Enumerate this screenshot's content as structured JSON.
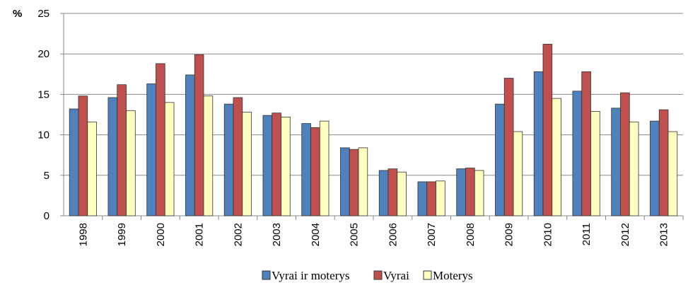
{
  "chart_data": {
    "type": "bar",
    "y_label": "%",
    "categories": [
      "1998",
      "1999",
      "2000",
      "2001",
      "2002",
      "2003",
      "2004",
      "2005",
      "2006",
      "2007",
      "2008",
      "2009",
      "2010",
      "2011",
      "2012",
      "2013"
    ],
    "series": [
      {
        "name": "Vyrai ir moterys",
        "color": "#4f81bd",
        "values": [
          13.2,
          14.6,
          16.3,
          17.4,
          13.8,
          12.4,
          11.4,
          8.4,
          5.6,
          4.2,
          5.8,
          13.8,
          17.8,
          15.4,
          13.3,
          11.7
        ]
      },
      {
        "name": "Vyrai",
        "color": "#c0504d",
        "values": [
          14.8,
          16.2,
          18.8,
          19.9,
          14.6,
          12.7,
          10.9,
          8.2,
          5.8,
          4.2,
          5.9,
          17.0,
          21.2,
          17.8,
          15.2,
          13.1
        ]
      },
      {
        "name": "Moterys",
        "color": "#ffffc0",
        "values": [
          11.6,
          13.0,
          14.0,
          14.8,
          12.8,
          12.2,
          11.7,
          8.4,
          5.4,
          4.3,
          5.6,
          10.4,
          14.5,
          12.9,
          11.6,
          10.4
        ]
      }
    ],
    "ylim": [
      0,
      25
    ],
    "yticks": [
      0,
      5,
      10,
      15,
      20,
      25
    ],
    "grid": true,
    "legend": "bottom"
  }
}
